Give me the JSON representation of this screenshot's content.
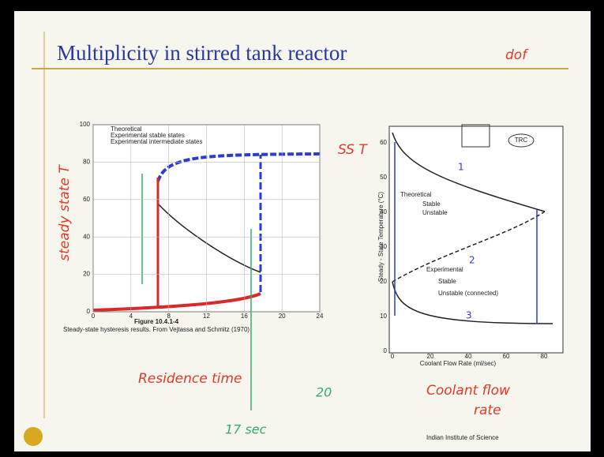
{
  "slide": {
    "title": "Multiplicity in stirred tank reactor",
    "footer": "Indian Institute of Science",
    "left_figure": {
      "yticks": [
        "100",
        "80",
        "60",
        "40",
        "20",
        "0"
      ],
      "xticks": [
        "0",
        "4",
        "8",
        "12",
        "16",
        "20",
        "24"
      ],
      "legend": [
        "Theoretical",
        "Experimental stable states",
        "Experimental intermediate states"
      ],
      "caption_number": "Figure 10.4.1-4",
      "caption": "Steady-state hysteresis results. From Vejtassa and Schmitz (1970)"
    },
    "right_figure": {
      "yticks": [
        "60",
        "50",
        "40",
        "30",
        "20",
        "10",
        "0"
      ],
      "xticks": [
        "0",
        "20",
        "40",
        "60",
        "80"
      ],
      "ylabel": "Steady - State Temperature (°C)",
      "xlabel": "Coolant Flow Rate (ml/sec)",
      "legend_title": "Theoretical",
      "legend": [
        "Stable",
        "Unstable"
      ],
      "exp_title": "Experimental",
      "exp_legend": [
        "Stable",
        "Unstable (connected)"
      ],
      "controller": "TRC"
    },
    "handwriting": {
      "left_ylabel": "steady state T",
      "left_xlabel": "Residence time",
      "time_a": "17 sec",
      "time_b": "20",
      "right_ylabel": "SS T",
      "right_xlabel_1": "Coolant flow",
      "right_xlabel_2": "rate",
      "dof": "dof",
      "circle_1": "1",
      "circle_2": "2",
      "circle_3": "3"
    }
  }
}
